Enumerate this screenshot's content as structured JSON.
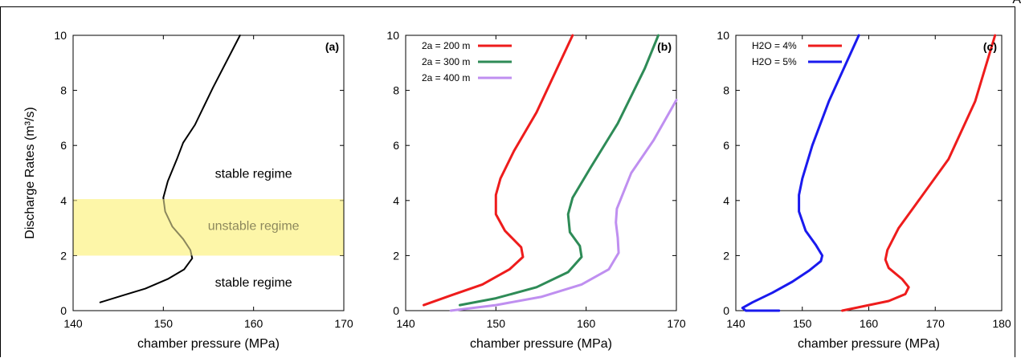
{
  "corner_mark": "A",
  "chart_data": [
    {
      "type": "line",
      "panel_label": "(a)",
      "xlabel": "chamber pressure (MPa)",
      "ylabel": "Discharge Rates (m³/s)",
      "xlim": [
        140,
        170
      ],
      "ylim": [
        0,
        10
      ],
      "xticks": [
        "140",
        "150",
        "160",
        "170"
      ],
      "yticks": [
        "0",
        "2",
        "4",
        "6",
        "8",
        "10"
      ],
      "band": {
        "y0": 2.0,
        "y1": 4.05,
        "color": "#fdf5a8"
      },
      "annotations": [
        {
          "text": "stable regime",
          "x": 160,
          "y": 5.0
        },
        {
          "text": "unstable regime",
          "x": 160,
          "y": 3.1
        },
        {
          "text": "stable regime",
          "x": 160,
          "y": 1.05
        }
      ],
      "series": [
        {
          "name": "",
          "color": "#000000",
          "x": [
            143.0,
            145.5,
            148.0,
            150.5,
            152.3,
            153.2,
            153.0,
            152.2,
            151.0,
            150.2,
            150.0,
            150.5,
            151.5,
            152.2,
            153.5,
            155.5,
            158.5
          ],
          "y": [
            0.3,
            0.55,
            0.8,
            1.15,
            1.5,
            1.9,
            2.2,
            2.6,
            3.05,
            3.6,
            4.1,
            4.7,
            5.5,
            6.1,
            6.75,
            8.1,
            10.0
          ]
        }
      ]
    },
    {
      "type": "line",
      "panel_label": "(b)",
      "xlabel": "chamber pressure (MPa)",
      "ylabel": "",
      "xlim": [
        140,
        170
      ],
      "ylim": [
        0,
        10
      ],
      "xticks": [
        "140",
        "150",
        "160",
        "170"
      ],
      "yticks": [
        "0",
        "2",
        "4",
        "6",
        "8",
        "10"
      ],
      "legend": "top-left",
      "series": [
        {
          "name": "2a = 200 m",
          "color": "#ee1c1c",
          "x": [
            142.0,
            145.0,
            148.5,
            151.5,
            153.0,
            152.8,
            151.0,
            150.0,
            150.0,
            150.5,
            152.0,
            154.5,
            158.5
          ],
          "y": [
            0.2,
            0.55,
            0.95,
            1.5,
            1.95,
            2.3,
            2.9,
            3.5,
            4.2,
            4.8,
            5.8,
            7.2,
            10.0
          ]
        },
        {
          "name": "2a = 300 m",
          "color": "#2e8b57",
          "x": [
            146.0,
            150.0,
            154.5,
            158.0,
            159.5,
            159.3,
            158.2,
            158.0,
            158.5,
            160.5,
            163.5,
            166.5,
            168.0
          ],
          "y": [
            0.2,
            0.45,
            0.85,
            1.4,
            1.95,
            2.35,
            2.85,
            3.5,
            4.1,
            5.2,
            6.8,
            8.8,
            10.0
          ]
        },
        {
          "name": "2a = 400 m",
          "color": "#bf8ff0",
          "x": [
            145.0,
            150.0,
            155.0,
            159.5,
            162.5,
            163.6,
            163.5,
            163.3,
            163.4,
            165.0,
            167.5,
            170.0
          ],
          "y": [
            0.0,
            0.2,
            0.5,
            0.95,
            1.5,
            2.1,
            2.65,
            3.2,
            3.7,
            5.0,
            6.2,
            7.65
          ]
        }
      ]
    },
    {
      "type": "line",
      "panel_label": "(c)",
      "xlabel": "chamber pressure (MPa)",
      "ylabel": "",
      "xlim": [
        140,
        180
      ],
      "ylim": [
        0,
        10
      ],
      "xticks": [
        "140",
        "150",
        "160",
        "170",
        "180"
      ],
      "yticks": [
        "0",
        "2",
        "4",
        "6",
        "8",
        "10"
      ],
      "legend": "top-left",
      "series": [
        {
          "name": "H2O = 4%",
          "color": "#ee1c1c",
          "x": [
            156.0,
            159.0,
            163.0,
            165.5,
            166.0,
            165.0,
            163.0,
            162.5,
            162.8,
            164.5,
            167.5,
            172.0,
            176.0,
            179.0
          ],
          "y": [
            0.0,
            0.15,
            0.35,
            0.6,
            0.85,
            1.15,
            1.55,
            1.85,
            2.2,
            3.0,
            4.0,
            5.5,
            7.6,
            10.0
          ]
        },
        {
          "name": "H2O = 5%",
          "color": "#1a1aee",
          "x": [
            146.5,
            141.5,
            141.0,
            142.5,
            145.5,
            148.5,
            151.0,
            152.8,
            153.0,
            152.0,
            150.5,
            149.5,
            149.5,
            150.0,
            151.5,
            154.0,
            158.5
          ],
          "y": [
            0.0,
            0.0,
            0.1,
            0.3,
            0.65,
            1.05,
            1.45,
            1.8,
            2.0,
            2.4,
            2.9,
            3.6,
            4.2,
            4.8,
            6.0,
            7.6,
            10.0
          ]
        }
      ]
    }
  ]
}
